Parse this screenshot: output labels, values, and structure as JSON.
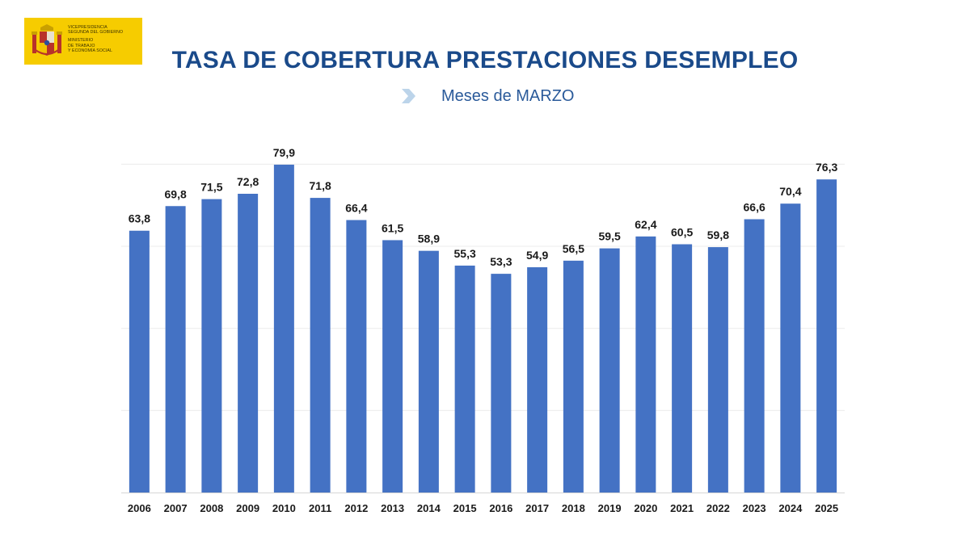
{
  "logo": {
    "lines_top": [
      "VICEPRESIDENCIA",
      "SEGUNDA DEL GOBIERNO"
    ],
    "lines_bottom": [
      "MINISTERIO",
      "DE TRABAJO",
      "Y ECONOMÍA SOCIAL"
    ]
  },
  "colors": {
    "bar": "#4472c4",
    "title": "#1a4a8a",
    "highlight": "#f3d64a",
    "logo_bg": "#f6cc00",
    "chevron": "#bcd4ea"
  },
  "chart_data": {
    "type": "bar",
    "title": "TASA DE COBERTURA PRESTACIONES DESEMPLEO",
    "subtitle": "Meses de MARZO",
    "xlabel": "",
    "ylabel": "",
    "ylim": [
      0,
      85
    ],
    "grid": true,
    "categories": [
      "2006",
      "2007",
      "2008",
      "2009",
      "2010",
      "2011",
      "2012",
      "2013",
      "2014",
      "2015",
      "2016",
      "2017",
      "2018",
      "2019",
      "2020",
      "2021",
      "2022",
      "2023",
      "2024",
      "2025"
    ],
    "values": [
      63.8,
      69.8,
      71.5,
      72.8,
      79.9,
      71.8,
      66.4,
      61.5,
      58.9,
      55.3,
      53.3,
      54.9,
      56.5,
      59.5,
      62.4,
      60.5,
      59.8,
      66.6,
      70.4,
      76.3
    ],
    "labels": [
      "63,8",
      "69,8",
      "71,5",
      "72,8",
      "79,9",
      "71,8",
      "66,4",
      "61,5",
      "58,9",
      "55,3",
      "53,3",
      "54,9",
      "56,5",
      "59,5",
      "62,4",
      "60,5",
      "59,8",
      "66,6",
      "70,4",
      "76,3"
    ]
  }
}
